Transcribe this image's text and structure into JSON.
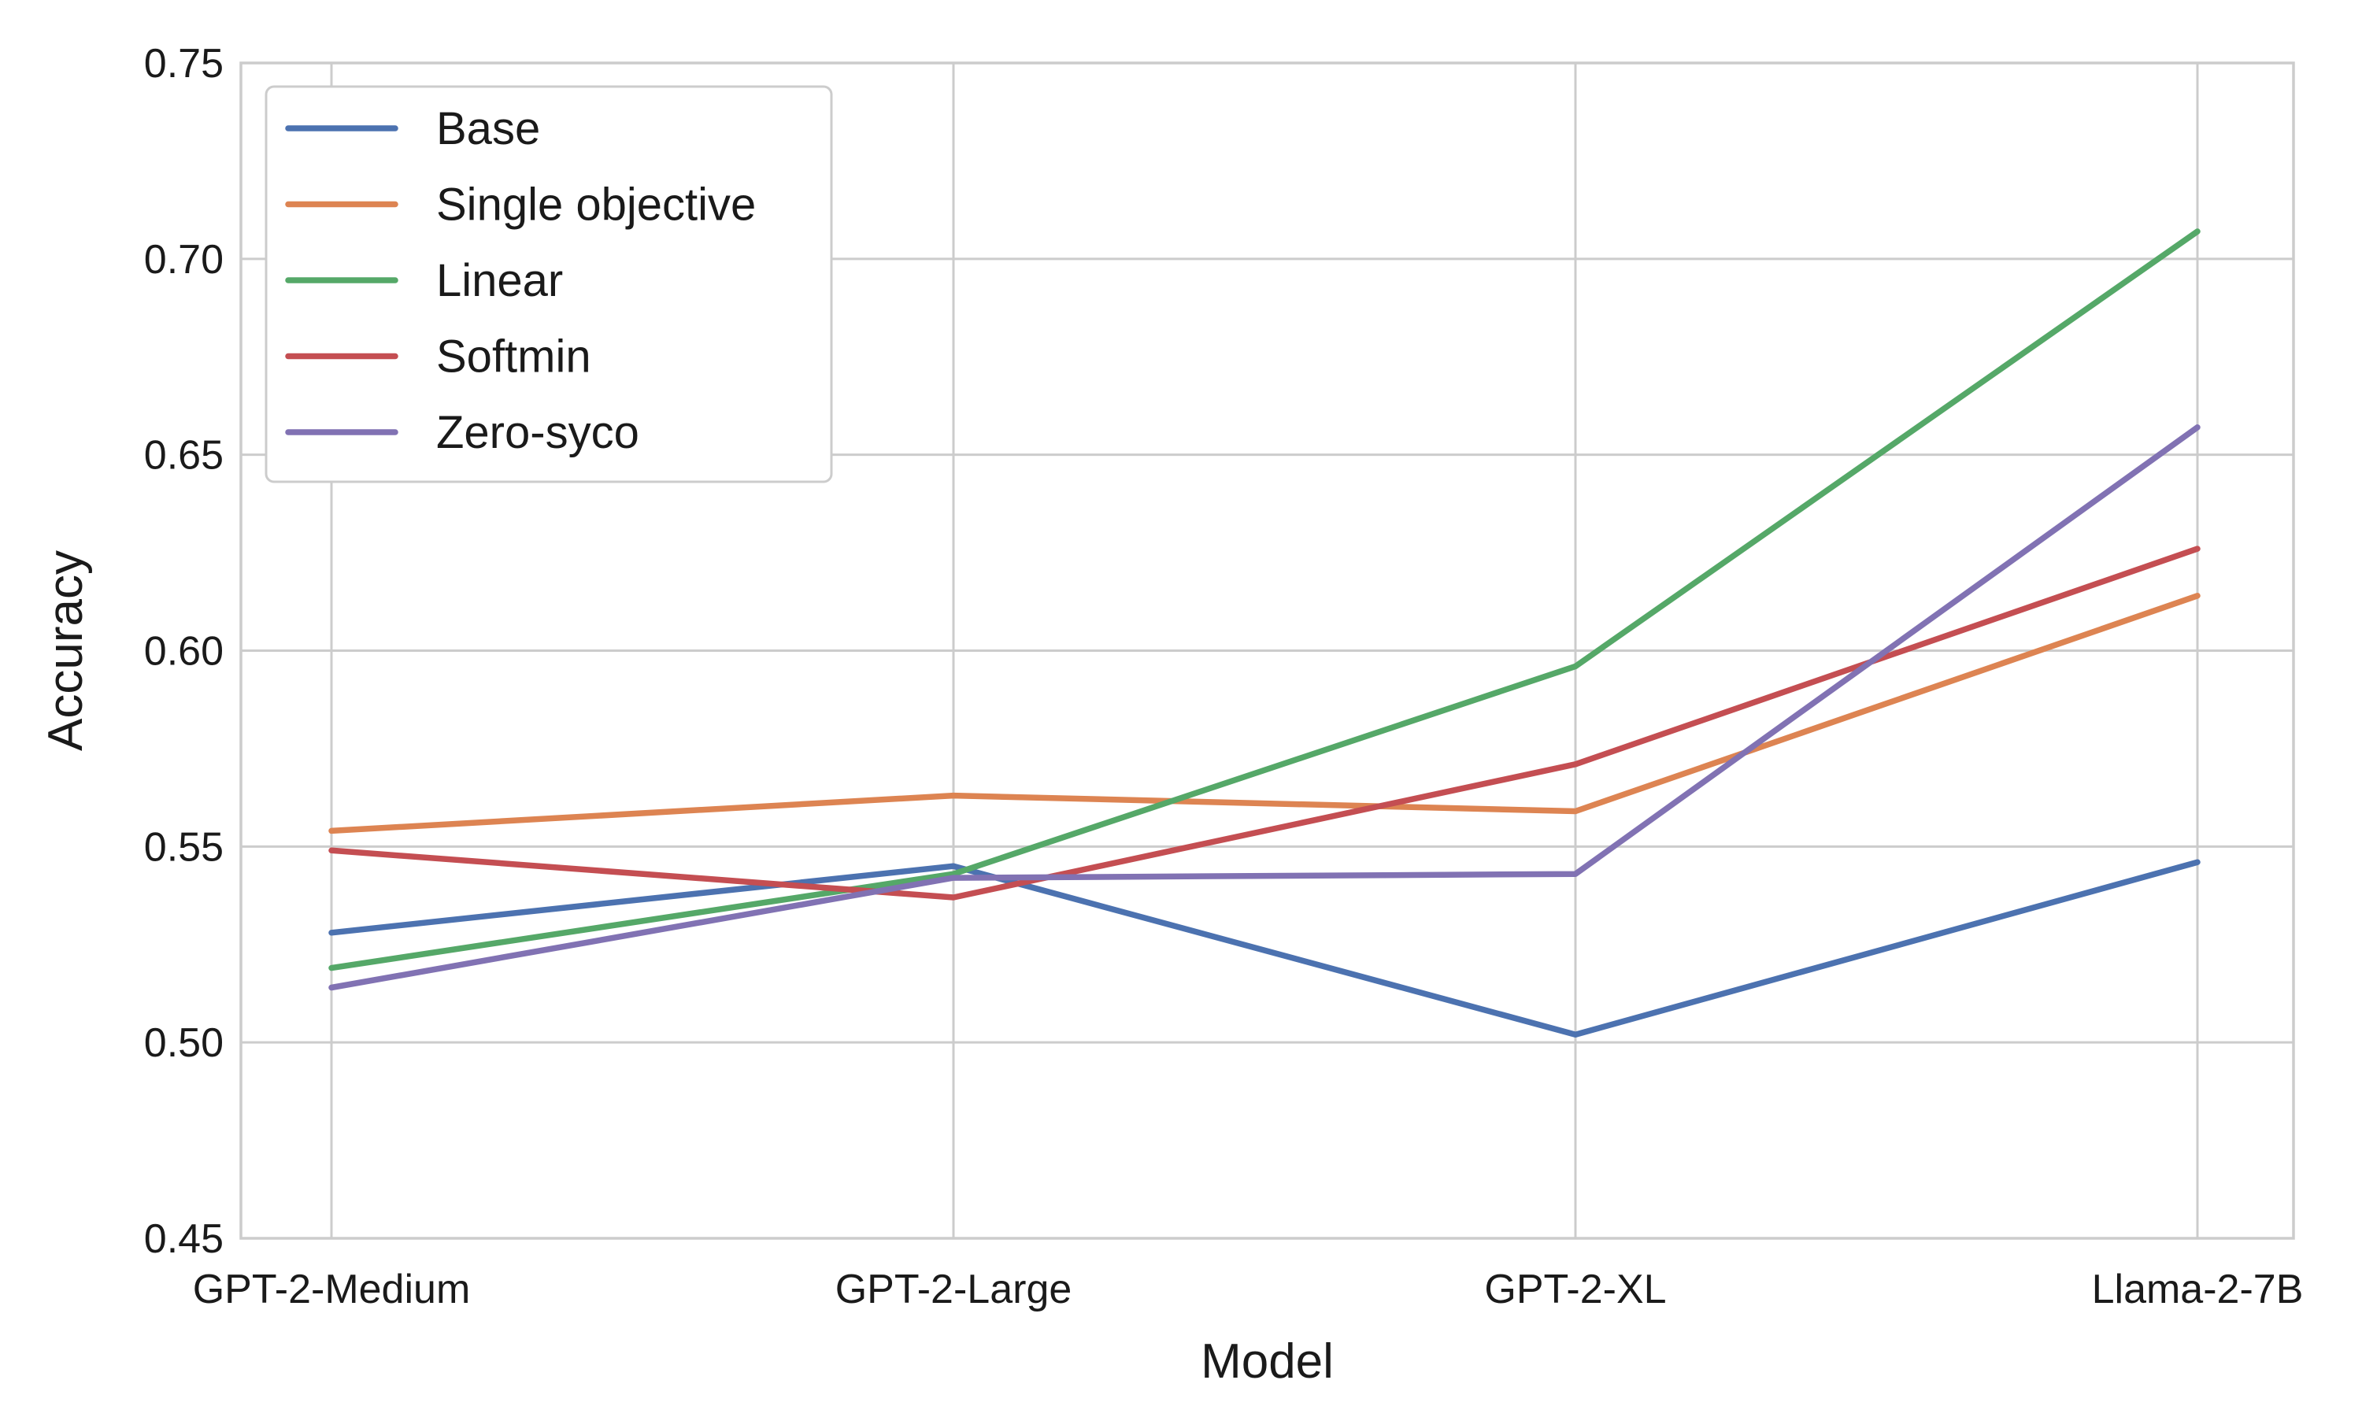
{
  "chart_data": {
    "type": "line",
    "title": "",
    "xlabel": "Model",
    "ylabel": "Accuracy",
    "categories": [
      "GPT-2-Medium",
      "GPT-2-Large",
      "GPT-2-XL",
      "Llama-2-7B"
    ],
    "ylim": [
      0.45,
      0.75
    ],
    "yticks": [
      "0.45",
      "0.50",
      "0.55",
      "0.60",
      "0.65",
      "0.70",
      "0.75"
    ],
    "grid": true,
    "legend_position": "top-left",
    "series": [
      {
        "name": "Base",
        "color": "#4c72b0",
        "values": [
          0.528,
          0.545,
          0.502,
          0.546
        ]
      },
      {
        "name": "Single objective",
        "color": "#dd8452",
        "values": [
          0.554,
          0.563,
          0.559,
          0.614
        ]
      },
      {
        "name": "Linear",
        "color": "#55a868",
        "values": [
          0.519,
          0.543,
          0.596,
          0.707
        ]
      },
      {
        "name": "Softmin",
        "color": "#c44e52",
        "values": [
          0.549,
          0.537,
          0.571,
          0.626
        ]
      },
      {
        "name": "Zero-syco",
        "color": "#8172b3",
        "values": [
          0.514,
          0.542,
          0.543,
          0.657
        ]
      }
    ]
  }
}
